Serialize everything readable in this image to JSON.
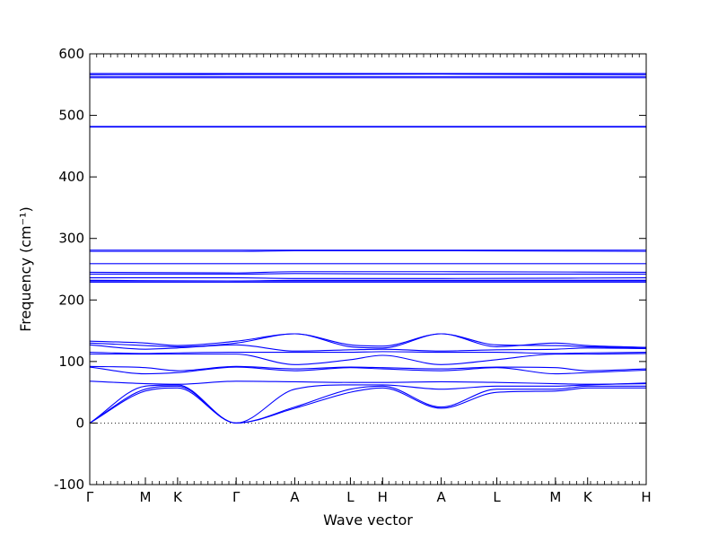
{
  "chart_data": {
    "type": "line",
    "title": "",
    "xlabel": "Wave vector",
    "ylabel": "Frequency (cm⁻¹)",
    "ylim": [
      -100,
      600
    ],
    "yticks": [
      -100,
      0,
      100,
      200,
      300,
      400,
      500,
      600
    ],
    "xlim": [
      0,
      19
    ],
    "high_symmetry_points": [
      {
        "label": "Γ",
        "x": 0
      },
      {
        "label": "M",
        "x": 1.9
      },
      {
        "label": "K",
        "x": 3.0
      },
      {
        "label": "Γ",
        "x": 5.0
      },
      {
        "label": "A",
        "x": 7.0
      },
      {
        "label": "L",
        "x": 8.9
      },
      {
        "label": "H",
        "x": 10.0
      },
      {
        "label": "A",
        "x": 12.0
      },
      {
        "label": "L",
        "x": 13.9
      },
      {
        "label": "M",
        "x": 15.9
      },
      {
        "label": "K",
        "x": 17.0
      },
      {
        "label": "H",
        "x": 19.0
      }
    ],
    "zero_line": {
      "y": 0,
      "style": "dotted"
    },
    "line_color": "#0000ff",
    "grid": false,
    "series": [
      {
        "x": [
          0,
          1.9,
          3,
          5,
          7,
          8.9,
          10,
          12,
          13.9,
          15.9,
          17,
          19
        ],
        "y": [
          0,
          52,
          57,
          0,
          24,
          50,
          57,
          24,
          50,
          52,
          57,
          57
        ]
      },
      {
        "x": [
          0,
          1.9,
          3,
          5,
          7,
          8.9,
          10,
          12,
          13.9,
          15.9,
          17,
          19
        ],
        "y": [
          0,
          55,
          60,
          0,
          26,
          55,
          60,
          26,
          55,
          55,
          60,
          60
        ]
      },
      {
        "x": [
          0,
          1.9,
          3,
          5,
          7,
          8.9,
          10,
          12,
          13.9,
          15.9,
          17,
          19
        ],
        "y": [
          0,
          60,
          62,
          0,
          55,
          62,
          62,
          55,
          60,
          60,
          62,
          65
        ]
      },
      {
        "x": [
          0,
          1.9,
          3,
          5,
          7,
          8.9,
          10,
          12,
          13.9,
          15.9,
          17,
          19
        ],
        "y": [
          68,
          64,
          63,
          68,
          67,
          66,
          66,
          67,
          66,
          64,
          63,
          64
        ]
      },
      {
        "x": [
          0,
          1.9,
          3,
          5,
          7,
          8.9,
          10,
          12,
          13.9,
          15.9,
          17,
          19
        ],
        "y": [
          91,
          80,
          82,
          91,
          85,
          90,
          88,
          85,
          90,
          80,
          82,
          86
        ]
      },
      {
        "x": [
          0,
          1.9,
          3,
          5,
          7,
          8.9,
          10,
          12,
          13.9,
          15.9,
          17,
          19
        ],
        "y": [
          92,
          90,
          85,
          92,
          88,
          91,
          90,
          88,
          91,
          90,
          85,
          88
        ]
      },
      {
        "x": [
          0,
          1.9,
          3,
          5,
          7,
          8.9,
          10,
          12,
          13.9,
          15.9,
          17,
          19
        ],
        "y": [
          112,
          112,
          112,
          112,
          95,
          103,
          110,
          95,
          103,
          112,
          112,
          113
        ]
      },
      {
        "x": [
          0,
          1.9,
          3,
          5,
          7,
          8.9,
          10,
          12,
          13.9,
          15.9,
          17,
          19
        ],
        "y": [
          115,
          113,
          114,
          115,
          115,
          115,
          116,
          115,
          115,
          113,
          114,
          115
        ]
      },
      {
        "x": [
          0,
          1.9,
          3,
          5,
          7,
          8.9,
          10,
          12,
          13.9,
          15.9,
          17,
          19
        ],
        "y": [
          127,
          120,
          122,
          127,
          117,
          119,
          120,
          117,
          119,
          120,
          122,
          121
        ]
      },
      {
        "x": [
          0,
          1.9,
          3,
          5,
          7,
          8.9,
          10,
          12,
          13.9,
          15.9,
          17,
          19
        ],
        "y": [
          130,
          126,
          124,
          130,
          145,
          127,
          125,
          145,
          127,
          126,
          124,
          122
        ]
      },
      {
        "x": [
          0,
          1.9,
          3,
          5,
          7,
          8.9,
          10,
          12,
          13.9,
          15.9,
          17,
          19
        ],
        "y": [
          133,
          130,
          126,
          133,
          145,
          124,
          122,
          145,
          124,
          130,
          126,
          123
        ]
      },
      {
        "x": [
          0,
          19
        ],
        "y": [
          229,
          229
        ]
      },
      {
        "x": [
          0,
          19
        ],
        "y": [
          231,
          231
        ]
      },
      {
        "x": [
          0,
          5,
          7,
          12,
          19
        ],
        "y": [
          232,
          231,
          232,
          232,
          232
        ]
      },
      {
        "x": [
          0,
          5,
          7,
          12,
          19
        ],
        "y": [
          236,
          236,
          235,
          235,
          236
        ]
      },
      {
        "x": [
          0,
          5,
          7,
          12,
          19
        ],
        "y": [
          242,
          242,
          243,
          242,
          242
        ]
      },
      {
        "x": [
          0,
          5,
          7,
          12,
          19
        ],
        "y": [
          245,
          244,
          246,
          246,
          245
        ]
      },
      {
        "x": [
          0,
          12,
          19
        ],
        "y": [
          259,
          259,
          259
        ]
      },
      {
        "x": [
          0,
          5,
          7,
          12,
          19
        ],
        "y": [
          279,
          279,
          280,
          280,
          279
        ]
      },
      {
        "x": [
          0,
          19
        ],
        "y": [
          281,
          281
        ]
      },
      {
        "x": [
          0,
          19
        ],
        "y": [
          481,
          481
        ]
      },
      {
        "x": [
          0,
          19
        ],
        "y": [
          482,
          482
        ]
      },
      {
        "x": [
          0,
          19
        ],
        "y": [
          561,
          561
        ]
      },
      {
        "x": [
          0,
          19
        ],
        "y": [
          563,
          563
        ]
      },
      {
        "x": [
          0,
          12,
          19
        ],
        "y": [
          566,
          567,
          566
        ]
      },
      {
        "x": [
          0,
          19
        ],
        "y": [
          568,
          568
        ]
      }
    ]
  }
}
